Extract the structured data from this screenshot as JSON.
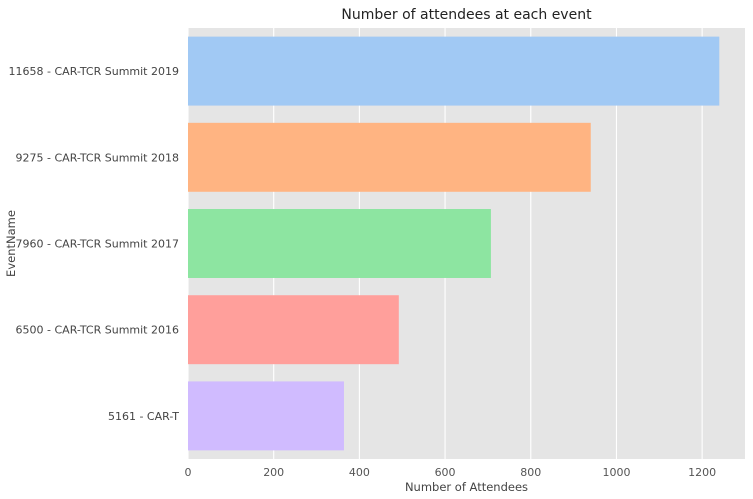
{
  "chart_data": {
    "type": "bar",
    "orientation": "horizontal",
    "title": "Number of attendees at each event",
    "xlabel": "Number of Attendees",
    "ylabel": "EventName",
    "categories": [
      "11658 - CAR-TCR Summit 2019",
      "9275 - CAR-TCR Summit 2018",
      "7960 - CAR-TCR Summit 2017",
      "6500 - CAR-TCR Summit 2016",
      "5161 - CAR-T"
    ],
    "values": [
      1240,
      940,
      707,
      492,
      364
    ],
    "colors": [
      "#a1c9f4",
      "#ffb482",
      "#8de5a1",
      "#ff9f9b",
      "#d0bbff"
    ],
    "xlim": [
      0,
      1300
    ],
    "xticks": [
      0,
      200,
      400,
      600,
      800,
      1000,
      1200
    ],
    "grid": true,
    "background": "#e5e5e5"
  }
}
